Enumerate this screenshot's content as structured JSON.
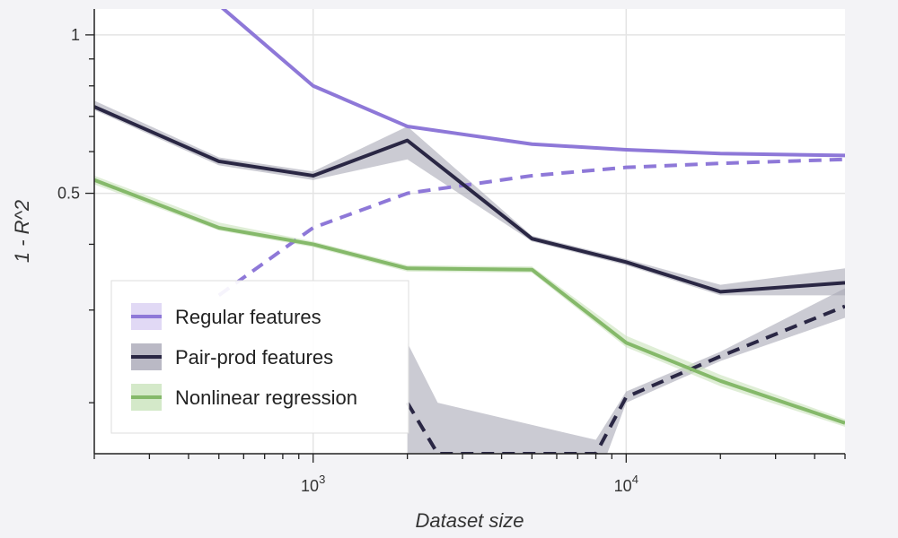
{
  "chart_data": {
    "type": "line",
    "xlabel": "Dataset size",
    "ylabel": "1 - R^2",
    "x_scale": "log",
    "y_scale": "log",
    "xlim": [
      200,
      50000
    ],
    "ylim": [
      0.16,
      1.12
    ],
    "x_ticks": [
      {
        "value": 1000,
        "base": "10",
        "exp": "3"
      },
      {
        "value": 10000,
        "base": "10",
        "exp": "4"
      }
    ],
    "y_ticks": [
      {
        "value": 1,
        "label": "1"
      },
      {
        "value": 0.5,
        "label": "0.5"
      }
    ],
    "grid": true,
    "legend_position": "bottom-left",
    "colors": {
      "regular": "#8e78d8",
      "pairprod": "#2a2744",
      "nonlinear": "#85b96a",
      "band_dark": "#a9a8b6",
      "band_green": "#c9e3bb"
    },
    "legend": [
      {
        "label": "Regular features",
        "key": "regular"
      },
      {
        "label": "Pair-prod features",
        "key": "pairprod"
      },
      {
        "label": "Nonlinear regression",
        "key": "nonlinear"
      }
    ],
    "series": [
      {
        "key": "regular",
        "style": "solid",
        "x": [
          500,
          1000,
          2000,
          5000,
          10000,
          20000,
          50000
        ],
        "y": [
          1.14,
          0.8,
          0.67,
          0.62,
          0.605,
          0.595,
          0.59
        ]
      },
      {
        "key": "regular",
        "style": "dashed",
        "x": [
          500,
          1000,
          2000,
          5000,
          10000,
          20000,
          50000
        ],
        "y": [
          0.32,
          0.43,
          0.5,
          0.54,
          0.56,
          0.57,
          0.58
        ]
      },
      {
        "key": "pairprod",
        "style": "solid",
        "x": [
          200,
          500,
          1000,
          2000,
          5000,
          10000,
          20000,
          50000
        ],
        "y": [
          0.73,
          0.575,
          0.54,
          0.63,
          0.41,
          0.37,
          0.325,
          0.338
        ],
        "band": [
          [
            0.72,
            0.75
          ],
          [
            0.565,
            0.585
          ],
          [
            0.53,
            0.55
          ],
          [
            0.58,
            0.67
          ],
          [
            0.405,
            0.415
          ],
          [
            0.365,
            0.375
          ],
          [
            0.32,
            0.335
          ],
          [
            0.32,
            0.36
          ]
        ]
      },
      {
        "key": "pairprod",
        "style": "dashed",
        "x": [
          2000,
          2500,
          8000,
          10000,
          20000,
          50000
        ],
        "y": [
          0.2,
          0.16,
          0.16,
          0.205,
          0.245,
          0.305
        ],
        "band": [
          [
            0.15,
            0.26
          ],
          [
            0.15,
            0.2
          ],
          [
            0.14,
            0.17
          ],
          [
            0.2,
            0.21
          ],
          [
            0.24,
            0.25
          ],
          [
            0.29,
            0.33
          ]
        ]
      },
      {
        "key": "nonlinear",
        "style": "solid",
        "x": [
          200,
          500,
          1000,
          2000,
          5000,
          10000,
          20000,
          50000
        ],
        "y": [
          0.53,
          0.43,
          0.4,
          0.36,
          0.358,
          0.26,
          0.22,
          0.183
        ],
        "band": [
          [
            0.52,
            0.54
          ],
          [
            0.425,
            0.44
          ],
          [
            0.395,
            0.405
          ],
          [
            0.355,
            0.365
          ],
          [
            0.353,
            0.363
          ],
          [
            0.255,
            0.268
          ],
          [
            0.215,
            0.226
          ],
          [
            0.18,
            0.186
          ]
        ]
      }
    ]
  }
}
